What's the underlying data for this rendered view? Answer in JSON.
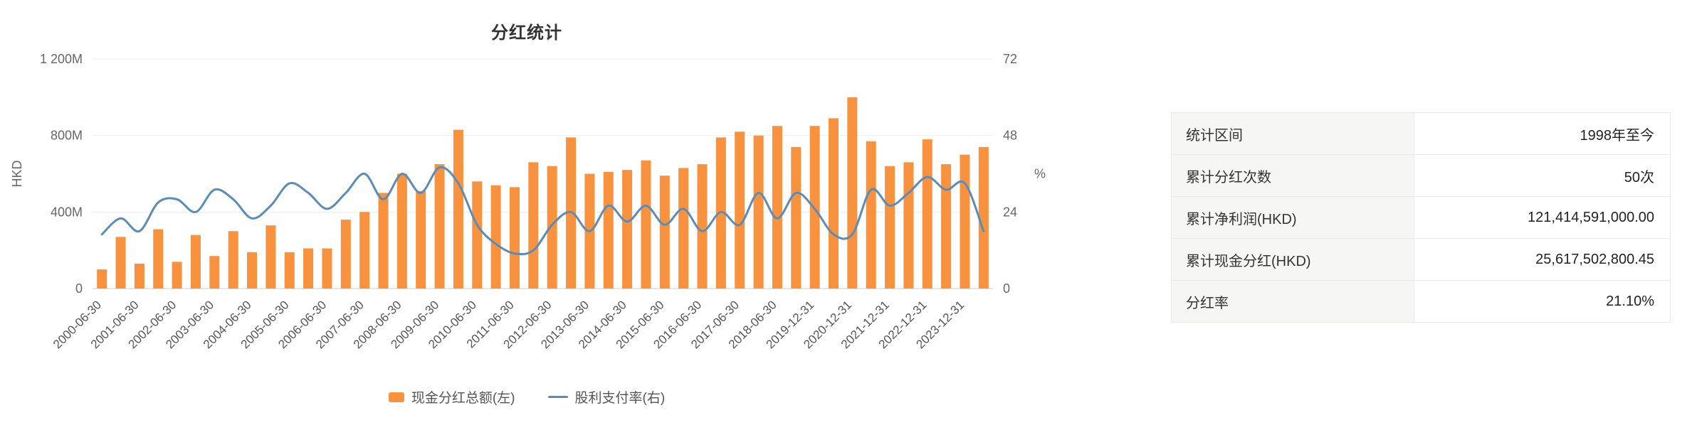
{
  "chart": {
    "title": "分红统计",
    "left_axis": {
      "name": "HKD",
      "ticks": [
        "0",
        "400M",
        "800M",
        "1 200M"
      ],
      "max": 1200
    },
    "right_axis": {
      "name": "%",
      "ticks": [
        "0",
        "24",
        "48",
        "72"
      ],
      "max": 72
    }
  },
  "chart_data": {
    "type": "bar",
    "title": "分红统计",
    "x_labels": [
      "2000-06-30",
      "2001-06-30",
      "2002-06-30",
      "2003-06-30",
      "2004-06-30",
      "2005-06-30",
      "2006-06-30",
      "2007-06-30",
      "2008-06-30",
      "2009-06-30",
      "2010-06-30",
      "2011-06-30",
      "2012-06-30",
      "2013-06-30",
      "2014-06-30",
      "2015-06-30",
      "2016-06-30",
      "2017-06-30",
      "2018-06-30",
      "2019-12-31",
      "2020-12-31",
      "2021-12-31",
      "2022-12-31",
      "2023-12-31"
    ],
    "x_label_every_n_bars": 2,
    "series": [
      {
        "name": "现金分红总额(左)",
        "type": "bar",
        "axis": "left",
        "unit": "M HKD",
        "color": "#f8923e",
        "values": [
          100,
          270,
          130,
          310,
          140,
          280,
          170,
          300,
          190,
          330,
          190,
          210,
          210,
          360,
          400,
          500,
          600,
          510,
          650,
          830,
          560,
          540,
          530,
          660,
          640,
          790,
          600,
          610,
          620,
          670,
          590,
          630,
          650,
          790,
          820,
          800,
          850,
          740,
          850,
          890,
          1000,
          770,
          640,
          660,
          780,
          650,
          700,
          740
        ]
      },
      {
        "name": "股利支付率(右)",
        "type": "line",
        "axis": "right",
        "unit": "%",
        "color": "#5b8cb8",
        "values": [
          17,
          22,
          18,
          27,
          28,
          24,
          31,
          28,
          22,
          26,
          33,
          30,
          25,
          30,
          36,
          28,
          36,
          30,
          38,
          33,
          20,
          14,
          11,
          12,
          20,
          24,
          18,
          26,
          21,
          26,
          20,
          25,
          18,
          24,
          20,
          30,
          22,
          30,
          25,
          17,
          17,
          31,
          26,
          30,
          35,
          31,
          33,
          18
        ]
      }
    ],
    "ylim_left": [
      0,
      1200
    ],
    "ylim_right": [
      0,
      72
    ],
    "grid": true,
    "legend_position": "bottom"
  },
  "table": {
    "rows": [
      {
        "key": "period",
        "label": "统计区间",
        "value": "1998年至今"
      },
      {
        "key": "dividend-count",
        "label": "累计分红次数",
        "value": "50次"
      },
      {
        "key": "net-profit",
        "label": "累计净利润(HKD)",
        "value": "121,414,591,000.00"
      },
      {
        "key": "cash-dividend",
        "label": "累计现金分红(HKD)",
        "value": "25,617,502,800.45"
      },
      {
        "key": "payout-ratio",
        "label": "分红率",
        "value": "21.10%"
      }
    ]
  }
}
